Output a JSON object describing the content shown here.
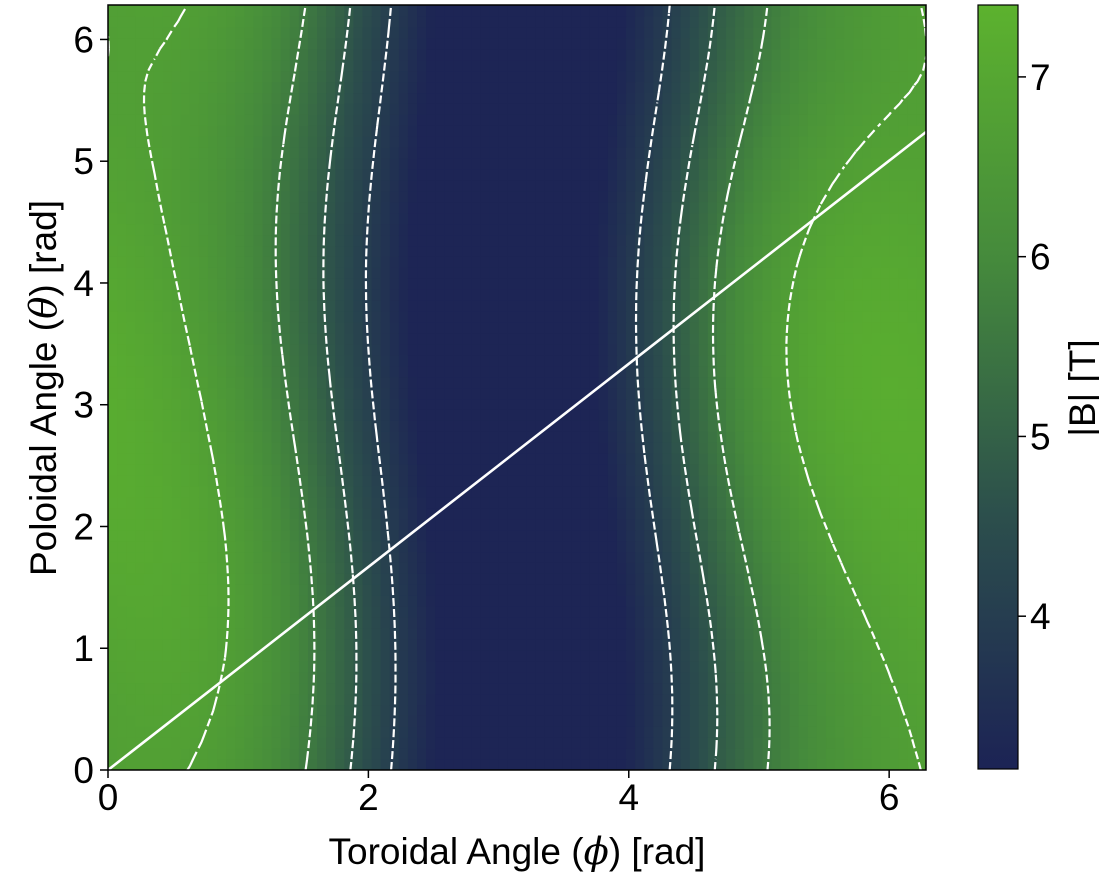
{
  "chart_data": {
    "type": "heatmap",
    "title": "",
    "xlabel": {
      "pre": "Toroidal Angle (",
      "sym": "ϕ",
      "post": ") [rad]"
    },
    "ylabel": {
      "pre": "Poloidal Angle (",
      "sym": "θ",
      "post": ") [rad]"
    },
    "xlim": [
      0,
      6.283
    ],
    "ylim": [
      0,
      6.283
    ],
    "xticks": [
      0,
      2,
      4,
      6
    ],
    "xtick_labels": [
      "0",
      "2",
      "4",
      "6"
    ],
    "yticks": [
      0,
      1,
      2,
      3,
      4,
      5,
      6
    ],
    "ytick_labels": [
      "0",
      "1",
      "2",
      "3",
      "4",
      "5",
      "6"
    ],
    "colorbar": {
      "label": "|B| [T]",
      "range": [
        3.15,
        7.4
      ],
      "ticks": [
        4,
        5,
        6,
        7
      ],
      "tick_labels": [
        "4",
        "5",
        "6",
        "7"
      ],
      "colors": [
        "#1c2355",
        "#2c4f4c",
        "#458a3c",
        "#5cb22e"
      ]
    },
    "field_range": [
      3.2,
      7.35
    ],
    "contour_levels": [
      4.0,
      4.8,
      5.6,
      6.7
    ],
    "field_line": {
      "x": [
        0,
        6.283
      ],
      "y": [
        0,
        5.24
      ],
      "color": "#ffffff"
    },
    "grid": false
  }
}
